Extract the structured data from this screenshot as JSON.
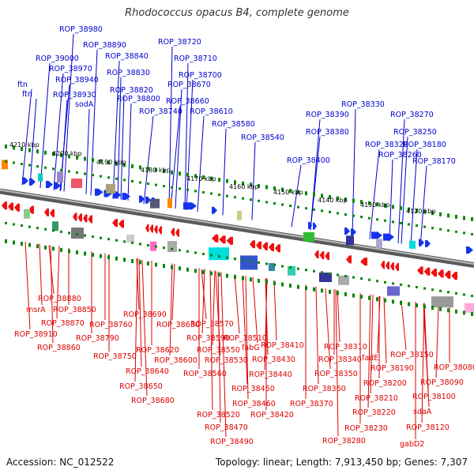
{
  "title": "Rhodococcus opacus B4, complete genome",
  "accession_text": "Accession: NC_012522",
  "summary_text": "Topology: linear; Length: 7,913,450 bp; Genes: 7,307",
  "colors": {
    "top_label": "#0000cc",
    "bottom_label": "#dd0000",
    "tick_green": "#008800",
    "backbone": "#888888"
  },
  "kbp_labels": [
    "4210 kbp",
    "4200 kbp",
    "4190 kbp",
    "4180 kbp",
    "4170 kbp",
    "4160 kbp",
    "4150 kbp",
    "4140 kbp",
    "4130 kbp",
    "4120 kbp"
  ],
  "top_labels": [
    "ROP_38980",
    "ROP_38890",
    "ROP_38720",
    "ROP_39000",
    "ROP_38840",
    "ROP_38710",
    "ROP_38970",
    "ROP_38700",
    "ROP_38830",
    "ROP_38940",
    "ROP_38670",
    "ROP_38820",
    "ftn",
    "ROP_38930",
    "ROP_38800",
    "ROP_38660",
    "ftn",
    "sodA",
    "ROP_38740",
    "ROP_38610",
    "ROP_38330",
    "ROP_38390",
    "ROP_38270",
    "ROP_38580",
    "ROP_38380",
    "ROP_38250",
    "ROP_38540",
    "ROP_38320",
    "ROP_38180",
    "ROP_38260",
    "ROP_38400",
    "ROP_38170"
  ],
  "bottom_labels": [
    "ROP_38880",
    "msrA",
    "ROP_38850",
    "ROP_38870",
    "ROP_38910",
    "ROP_38690",
    "ROP_38760",
    "ROP_38630",
    "ROP_38570",
    "ROP_38860",
    "ROP_38790",
    "ROP_38590",
    "ROP_38510",
    "ROP_38410",
    "ROP_38620",
    "ROP_38550",
    "fabG",
    "ROP_38310",
    "ROP_38750",
    "ROP_38600",
    "ROP_38530",
    "ROP_38430",
    "ROP_38340",
    "fadE",
    "ROP_38150",
    "ROP_38640",
    "ROP_38560",
    "ROP_38440",
    "ROP_38350",
    "ROP_38190",
    "ROP_38080",
    "ROP_38650",
    "ROP_38450",
    "ROP_38360",
    "ROP_38200",
    "ROP_38090",
    "ROP_38680",
    "ROP_38460",
    "ROP_38370",
    "ROP_38210",
    "ROP_38100",
    "ROP_38520",
    "ROP_38420",
    "ROP_38220",
    "sdaA",
    "ROP_38470",
    "ROP_38230",
    "ROP_38120",
    "ROP_38490",
    "ROP_38280",
    "gabD2"
  ]
}
